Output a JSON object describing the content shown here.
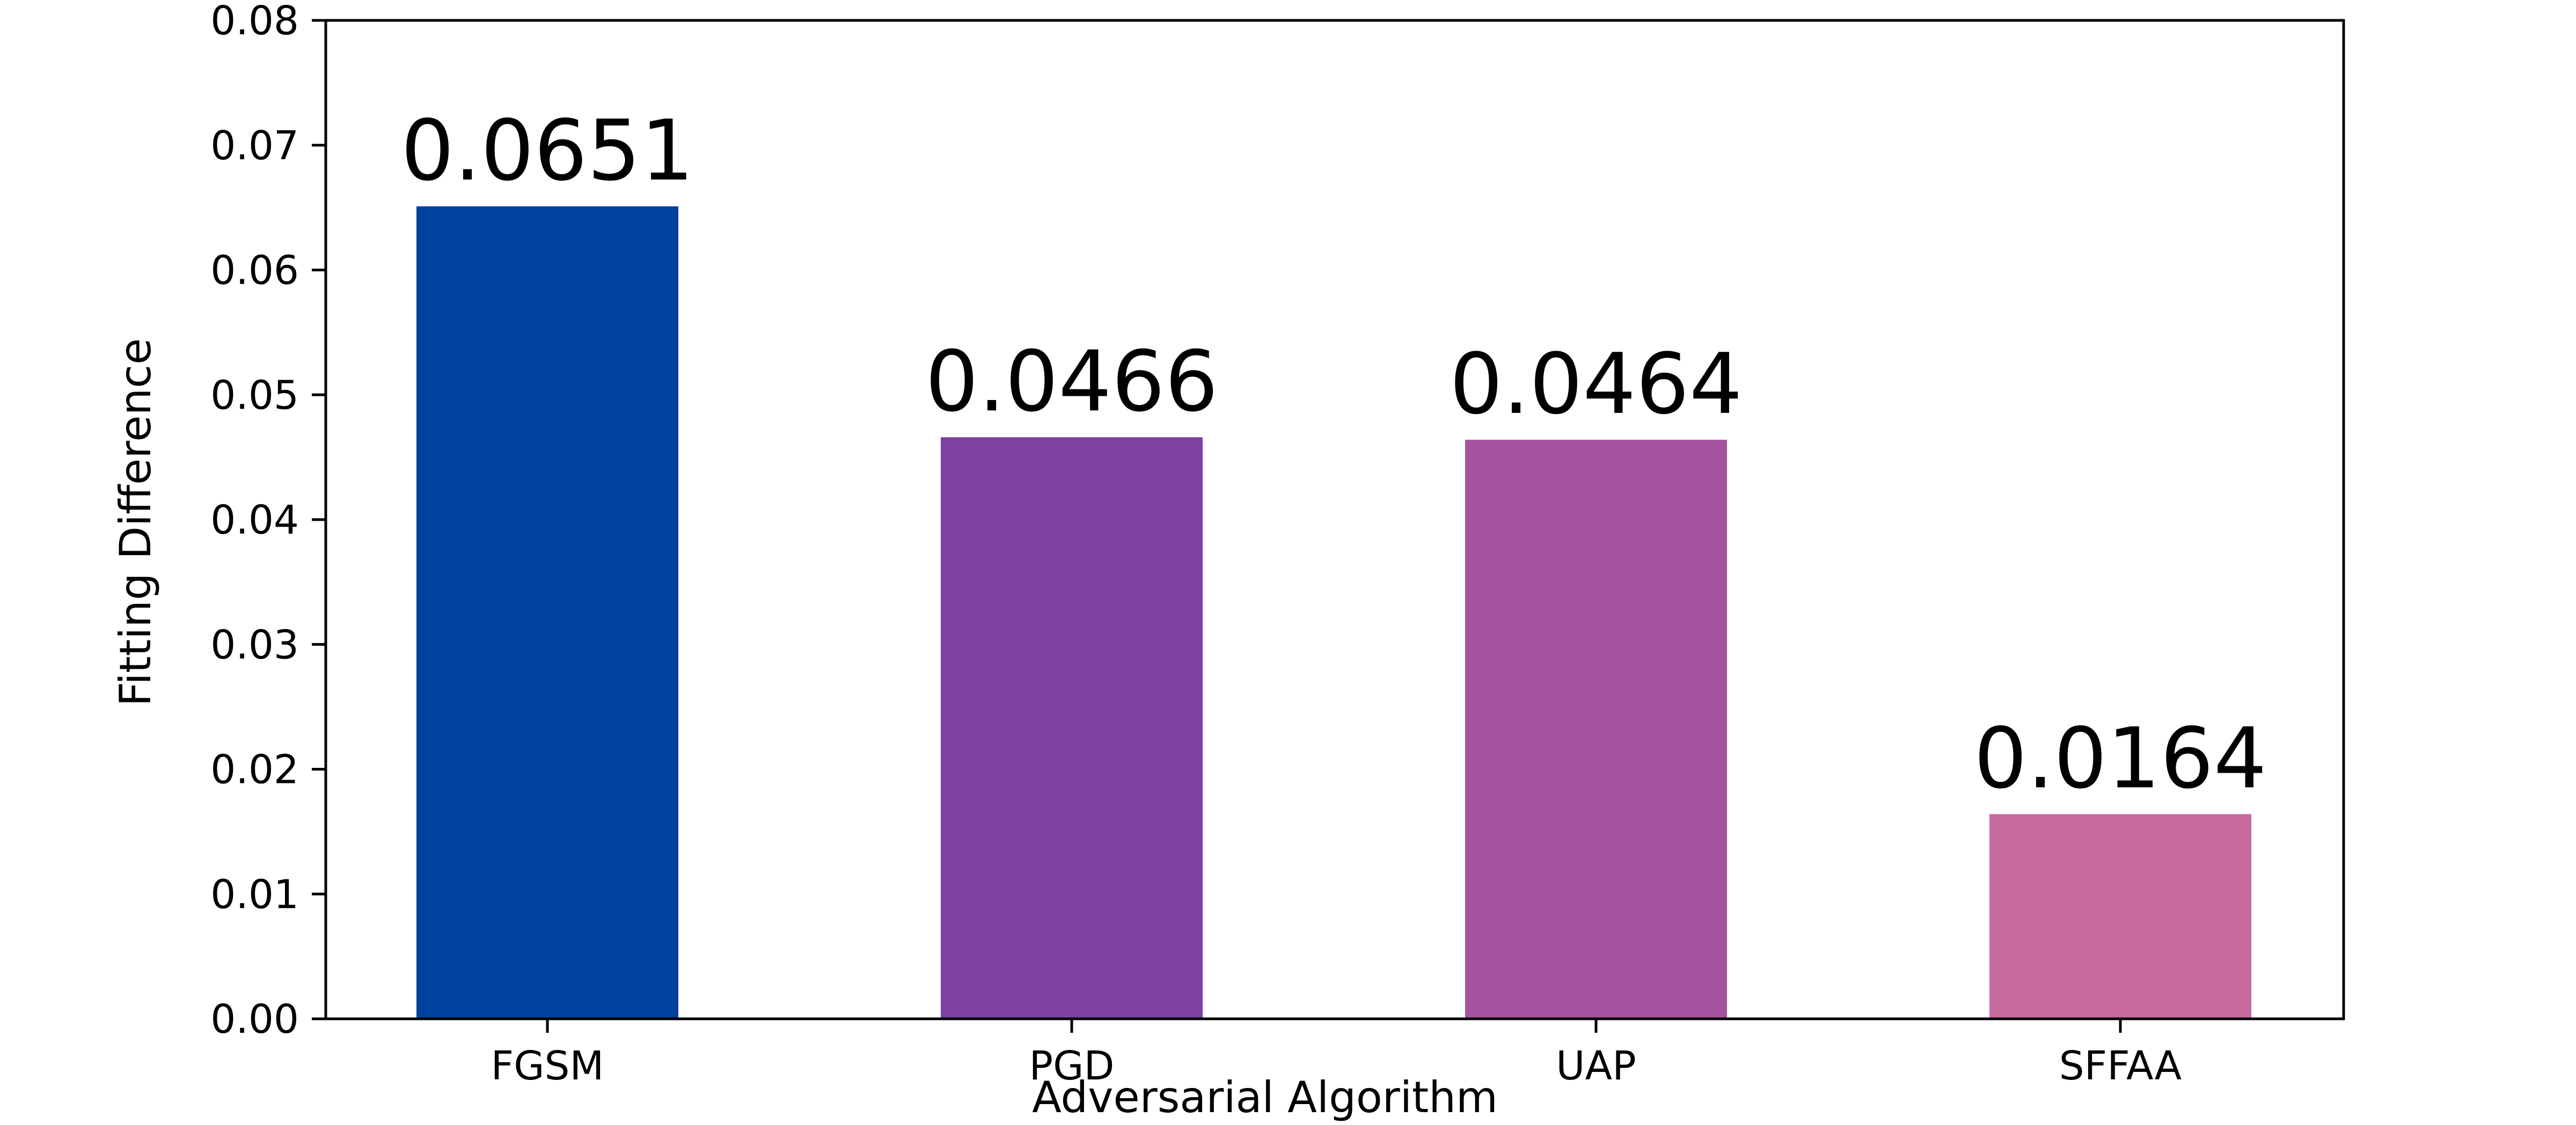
{
  "chart_data": {
    "type": "bar",
    "categories": [
      "FGSM",
      "PGD",
      "UAP",
      "SFFAA"
    ],
    "values": [
      0.0651,
      0.0466,
      0.0464,
      0.0164
    ],
    "data_labels": [
      "0.0651",
      "0.0466",
      "0.0464",
      "0.0164"
    ],
    "colors": [
      "#00429d",
      "#7f419f",
      "#a4549f",
      "#c76a9e"
    ],
    "xlabel": "Adversarial Algorithm",
    "ylabel": "Fitting Difference",
    "ylim": [
      0,
      0.08
    ],
    "yticks": [
      0.0,
      0.01,
      0.02,
      0.03,
      0.04,
      0.05,
      0.06,
      0.07,
      0.08
    ],
    "ytick_labels": [
      "0.00",
      "0.01",
      "0.02",
      "0.03",
      "0.04",
      "0.05",
      "0.06",
      "0.07",
      "0.08"
    ],
    "grid": false,
    "legend": "none"
  }
}
